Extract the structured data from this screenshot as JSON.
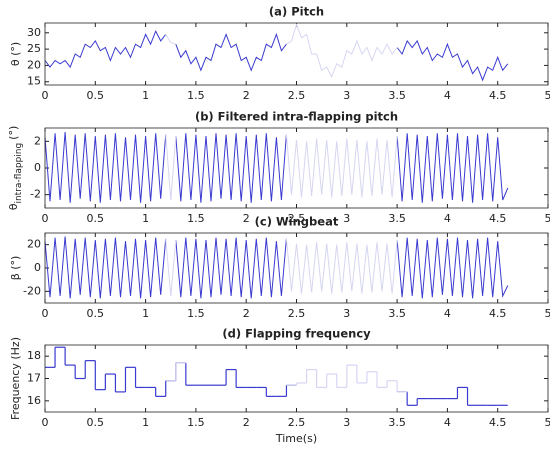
{
  "chart_data": [
    {
      "type": "line",
      "title": "(a) Pitch",
      "ylabel": "θ (°)",
      "xlim": [
        0,
        5
      ],
      "xticks": [
        0,
        0.5,
        1,
        1.5,
        2,
        2.5,
        3,
        3.5,
        4,
        4.5,
        5
      ],
      "ylim": [
        14,
        33
      ],
      "yticks": [
        15,
        20,
        25,
        30
      ],
      "x": [
        0,
        0.05,
        0.1,
        0.15,
        0.2,
        0.25,
        0.3,
        0.35,
        0.4,
        0.45,
        0.5,
        0.55,
        0.6,
        0.65,
        0.7,
        0.75,
        0.8,
        0.85,
        0.9,
        0.95,
        1,
        1.05,
        1.1,
        1.15,
        1.2,
        1.25,
        1.3,
        1.35,
        1.4,
        1.45,
        1.5,
        1.55,
        1.6,
        1.65,
        1.7,
        1.75,
        1.8,
        1.85,
        1.9,
        1.95,
        2,
        2.05,
        2.1,
        2.15,
        2.2,
        2.25,
        2.3,
        2.35,
        2.4,
        2.45,
        2.5,
        2.55,
        2.6,
        2.65,
        2.7,
        2.75,
        2.8,
        2.85,
        2.9,
        2.95,
        3,
        3.05,
        3.1,
        3.15,
        3.2,
        3.25,
        3.3,
        3.35,
        3.4,
        3.45,
        3.5,
        3.55,
        3.6,
        3.65,
        3.7,
        3.75,
        3.8,
        3.85,
        3.9,
        3.95,
        4,
        4.05,
        4.1,
        4.15,
        4.2,
        4.25,
        4.3,
        4.35,
        4.4,
        4.45,
        4.5,
        4.55,
        4.6
      ],
      "series": [
        {
          "color": "#3a3ad0",
          "values": [
            21.5,
            19.5,
            21.5,
            20.5,
            21.5,
            19.5,
            23.5,
            22.5,
            26.5,
            25.5,
            27.5,
            24.5,
            25.5,
            21.5,
            25.5,
            23.5,
            25.5,
            22.5,
            26.5,
            25.5,
            29.5,
            26.5,
            30.5,
            27.5,
            29.5,
            null,
            26.5,
            22.5,
            24.5,
            20.5,
            22.5,
            18.5,
            22.5,
            21.5,
            26.5,
            25.5,
            29.5,
            25.5,
            26.5,
            21.5,
            22.5,
            18.5,
            22.5,
            21.5,
            26.5,
            25.5,
            29.5,
            24.5,
            26.5,
            null,
            null,
            null,
            null,
            null,
            null,
            null,
            null,
            null,
            null,
            null,
            null,
            null,
            null,
            null,
            null,
            null,
            null,
            null,
            null,
            null,
            25.5,
            23.5,
            27.5,
            25.5,
            27.5,
            23.5,
            25.5,
            21.5,
            23.5,
            22.5,
            26.5,
            22.5,
            23.5,
            19.5,
            21.5,
            17.5,
            19.5,
            15.5,
            19.5,
            18.5,
            22.5,
            18.5,
            20.5
          ]
        },
        {
          "color": "#d6d6f2",
          "values": [
            null,
            null,
            null,
            null,
            null,
            null,
            null,
            null,
            null,
            null,
            null,
            null,
            null,
            null,
            null,
            null,
            null,
            null,
            null,
            null,
            null,
            null,
            null,
            null,
            29.5,
            27,
            26.5,
            null,
            null,
            null,
            null,
            null,
            null,
            null,
            null,
            null,
            null,
            null,
            null,
            null,
            null,
            null,
            null,
            null,
            null,
            null,
            null,
            null,
            26.5,
            27.5,
            32.5,
            28.5,
            29.5,
            23.5,
            23.5,
            18.5,
            19.5,
            16.5,
            20.5,
            19.5,
            24.5,
            23.5,
            27.5,
            23.5,
            25.5,
            21.5,
            25.5,
            23.5,
            26.5,
            23.5,
            25.5,
            null,
            null,
            null,
            null,
            null,
            null,
            null,
            null,
            null,
            null,
            null,
            null,
            null,
            null,
            null,
            null,
            null,
            null,
            null,
            null,
            null,
            null
          ]
        }
      ]
    },
    {
      "type": "line",
      "title": "(b) Filtered intra-flapping pitch",
      "ylabel": "θ",
      "ylabel_sub": "intra-flapping",
      "ylabel_unit": "(°)",
      "xlim": [
        0,
        5
      ],
      "xticks": [
        0,
        0.5,
        1,
        1.5,
        2,
        2.5,
        3,
        3.5,
        4,
        4.5,
        5
      ],
      "ylim": [
        -3,
        3
      ],
      "yticks": [
        -2,
        0,
        2
      ],
      "x": [
        0,
        0.05,
        0.1,
        0.15,
        0.2,
        0.25,
        0.3,
        0.35,
        0.4,
        0.45,
        0.5,
        0.55,
        0.6,
        0.65,
        0.7,
        0.75,
        0.8,
        0.85,
        0.9,
        0.95,
        1,
        1.05,
        1.1,
        1.15,
        1.2,
        1.25,
        1.3,
        1.35,
        1.4,
        1.45,
        1.5,
        1.55,
        1.6,
        1.65,
        1.7,
        1.75,
        1.8,
        1.85,
        1.9,
        1.95,
        2,
        2.05,
        2.1,
        2.15,
        2.2,
        2.25,
        2.3,
        2.35,
        2.4,
        2.45,
        2.5,
        2.55,
        2.6,
        2.65,
        2.7,
        2.75,
        2.8,
        2.85,
        2.9,
        2.95,
        3,
        3.05,
        3.1,
        3.15,
        3.2,
        3.25,
        3.3,
        3.35,
        3.4,
        3.45,
        3.5,
        3.55,
        3.6,
        3.65,
        3.7,
        3.75,
        3.8,
        3.85,
        3.9,
        3.95,
        4,
        4.05,
        4.1,
        4.15,
        4.2,
        4.25,
        4.3,
        4.35,
        4.4,
        4.45,
        4.5,
        4.55,
        4.6
      ],
      "series": [
        {
          "color": "#3a3ad0",
          "values": [
            2.3,
            -2.5,
            2.6,
            -2.4,
            2.7,
            -2.6,
            2.5,
            -2.3,
            2.6,
            -2.5,
            2.4,
            -2.6,
            2.5,
            -2.4,
            2.6,
            -2.5,
            2.3,
            -2.4,
            2.5,
            -2.6,
            2.4,
            -2.5,
            2.6,
            -2.3,
            2.5,
            null,
            2.4,
            -2.5,
            2.6,
            -2.4,
            2.5,
            -2.6,
            2.4,
            -2.5,
            2.6,
            -2.3,
            2.5,
            -2.4,
            2.6,
            -2.5,
            2.4,
            -2.6,
            2.5,
            -2.4,
            2.6,
            -2.5,
            2.3,
            -2.4,
            2.5,
            null,
            null,
            null,
            null,
            null,
            null,
            null,
            null,
            null,
            null,
            null,
            null,
            null,
            null,
            null,
            null,
            null,
            null,
            null,
            null,
            null,
            2.4,
            -2.5,
            2.6,
            -2.4,
            2.5,
            -2.6,
            2.4,
            -2.5,
            2.6,
            -2.3,
            2.5,
            -2.4,
            2.6,
            -2.5,
            2.4,
            -2.6,
            2.5,
            -2.4,
            2.6,
            -2.5,
            2.3,
            -2.4,
            -1.5
          ]
        },
        {
          "color": "#d6d6f2",
          "values": [
            null,
            null,
            null,
            null,
            null,
            null,
            null,
            null,
            null,
            null,
            null,
            null,
            null,
            null,
            null,
            null,
            null,
            null,
            null,
            null,
            null,
            null,
            null,
            null,
            2.5,
            -2.4,
            2.4,
            null,
            null,
            null,
            null,
            null,
            null,
            null,
            null,
            null,
            null,
            null,
            null,
            null,
            null,
            null,
            null,
            null,
            null,
            null,
            null,
            null,
            2.5,
            -2.0,
            2.1,
            -2.2,
            2.0,
            -2.1,
            2.2,
            -2.0,
            2.1,
            -2.2,
            2.0,
            -2.1,
            2.2,
            -2.0,
            2.1,
            -2.2,
            2.0,
            -2.1,
            2.2,
            -2.0,
            2.1,
            -2.2,
            2.4,
            null,
            null,
            null,
            null,
            null,
            null,
            null,
            null,
            null,
            null,
            null,
            null,
            null,
            null,
            null,
            null,
            null,
            null,
            null,
            null,
            null,
            null
          ]
        }
      ]
    },
    {
      "type": "line",
      "title": "(c) Wingbeat",
      "ylabel": "β (°)",
      "xlim": [
        0,
        5
      ],
      "xticks": [
        0,
        0.5,
        1,
        1.5,
        2,
        2.5,
        3,
        3.5,
        4,
        4.5,
        5
      ],
      "ylim": [
        -30,
        30
      ],
      "yticks": [
        -20,
        0,
        20
      ],
      "x": [
        0,
        0.05,
        0.1,
        0.15,
        0.2,
        0.25,
        0.3,
        0.35,
        0.4,
        0.45,
        0.5,
        0.55,
        0.6,
        0.65,
        0.7,
        0.75,
        0.8,
        0.85,
        0.9,
        0.95,
        1,
        1.05,
        1.1,
        1.15,
        1.2,
        1.25,
        1.3,
        1.35,
        1.4,
        1.45,
        1.5,
        1.55,
        1.6,
        1.65,
        1.7,
        1.75,
        1.8,
        1.85,
        1.9,
        1.95,
        2,
        2.05,
        2.1,
        2.15,
        2.2,
        2.25,
        2.3,
        2.35,
        2.4,
        2.45,
        2.5,
        2.55,
        2.6,
        2.65,
        2.7,
        2.75,
        2.8,
        2.85,
        2.9,
        2.95,
        3,
        3.05,
        3.1,
        3.15,
        3.2,
        3.25,
        3.3,
        3.35,
        3.4,
        3.45,
        3.5,
        3.55,
        3.6,
        3.65,
        3.7,
        3.75,
        3.8,
        3.85,
        3.9,
        3.95,
        4,
        4.05,
        4.1,
        4.15,
        4.2,
        4.25,
        4.3,
        4.35,
        4.4,
        4.45,
        4.5,
        4.55,
        4.6
      ],
      "series": [
        {
          "color": "#3a3ad0",
          "values": [
            23,
            -25,
            26,
            -24,
            27,
            -26,
            25,
            -23,
            26,
            -25,
            24,
            -26,
            25,
            -24,
            26,
            -25,
            23,
            -24,
            25,
            -26,
            24,
            -25,
            26,
            -23,
            25,
            null,
            24,
            -25,
            26,
            -24,
            25,
            -26,
            24,
            -25,
            26,
            -23,
            25,
            -24,
            26,
            -25,
            24,
            -26,
            25,
            -24,
            26,
            -25,
            23,
            -24,
            25,
            null,
            null,
            null,
            null,
            null,
            null,
            null,
            null,
            null,
            null,
            null,
            null,
            null,
            null,
            null,
            null,
            null,
            null,
            null,
            null,
            null,
            24,
            -25,
            26,
            -24,
            25,
            -26,
            24,
            -25,
            26,
            -23,
            25,
            -24,
            26,
            -25,
            24,
            -26,
            25,
            -24,
            26,
            -25,
            23,
            -24,
            -15
          ]
        },
        {
          "color": "#d6d6f2",
          "values": [
            null,
            null,
            null,
            null,
            null,
            null,
            null,
            null,
            null,
            null,
            null,
            null,
            null,
            null,
            null,
            null,
            null,
            null,
            null,
            null,
            null,
            null,
            null,
            null,
            25,
            -24,
            24,
            null,
            null,
            null,
            null,
            null,
            null,
            null,
            null,
            null,
            null,
            null,
            null,
            null,
            null,
            null,
            null,
            null,
            null,
            null,
            null,
            null,
            25,
            -20,
            21,
            -22,
            20,
            -21,
            22,
            -20,
            21,
            -22,
            20,
            -21,
            22,
            -20,
            21,
            -22,
            20,
            -21,
            22,
            -20,
            21,
            -22,
            24,
            null,
            null,
            null,
            null,
            null,
            null,
            null,
            null,
            null,
            null,
            null,
            null,
            null,
            null,
            null,
            null,
            null,
            null,
            null,
            null,
            null,
            null
          ]
        }
      ]
    },
    {
      "type": "step",
      "title": "(d) Flapping frequency",
      "ylabel": "Frequency (Hz)",
      "xlabel": "Time(s)",
      "xlim": [
        0,
        5
      ],
      "xticks": [
        0,
        0.5,
        1,
        1.5,
        2,
        2.5,
        3,
        3.5,
        4,
        4.5,
        5
      ],
      "ylim": [
        15.5,
        18.5
      ],
      "yticks": [
        16,
        17,
        18
      ],
      "x": [
        0,
        0.1,
        0.2,
        0.3,
        0.4,
        0.5,
        0.6,
        0.7,
        0.8,
        0.9,
        1,
        1.1,
        1.2,
        1.3,
        1.4,
        1.5,
        1.6,
        1.7,
        1.8,
        1.9,
        2,
        2.1,
        2.2,
        2.3,
        2.4,
        2.5,
        2.6,
        2.7,
        2.8,
        2.9,
        3,
        3.1,
        3.2,
        3.3,
        3.4,
        3.5,
        3.6,
        3.7,
        3.8,
        3.9,
        4,
        4.1,
        4.2,
        4.3,
        4.4,
        4.5,
        4.6
      ],
      "series": [
        {
          "color": "#3a3ad0",
          "values": [
            17.5,
            18.4,
            17.6,
            17.0,
            17.8,
            16.5,
            17.2,
            16.4,
            17.5,
            16.6,
            16.6,
            16.2,
            16.9,
            17.7,
            16.7,
            16.7,
            16.7,
            16.7,
            17.4,
            16.6,
            16.6,
            16.6,
            16.2,
            16.2,
            16.7,
            null,
            null,
            null,
            null,
            null,
            null,
            null,
            null,
            null,
            null,
            16.4,
            15.8,
            16.1,
            16.1,
            16.1,
            16.1,
            16.6,
            15.8,
            15.8,
            15.8,
            15.8,
            15.8
          ]
        },
        {
          "color": "#d6d6f2",
          "values": [
            null,
            null,
            null,
            null,
            null,
            null,
            null,
            null,
            null,
            null,
            null,
            null,
            16.9,
            17.7,
            null,
            null,
            null,
            null,
            null,
            null,
            null,
            null,
            null,
            null,
            16.7,
            16.8,
            17.4,
            16.6,
            17.2,
            16.6,
            17.6,
            16.8,
            17.3,
            16.6,
            16.9,
            16.4,
            null,
            null,
            null,
            null,
            null,
            null,
            null,
            null,
            null,
            null,
            null
          ]
        }
      ]
    }
  ]
}
